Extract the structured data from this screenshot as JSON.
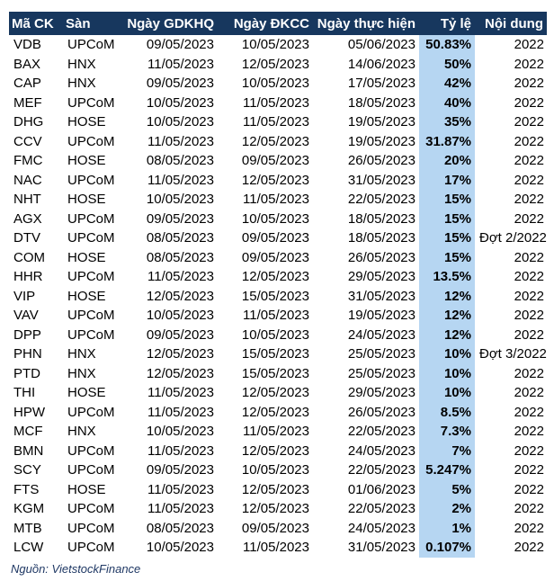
{
  "table": {
    "headers": [
      "Mã CK",
      "Sàn",
      "Ngày GDKHQ",
      "Ngày ĐKCC",
      "Ngày thực hiện",
      "Tỷ lệ",
      "Nội dung"
    ],
    "rows": [
      [
        "VDB",
        "UPCoM",
        "09/05/2023",
        "10/05/2023",
        "05/06/2023",
        "50.83%",
        "2022"
      ],
      [
        "BAX",
        "HNX",
        "11/05/2023",
        "12/05/2023",
        "14/06/2023",
        "50%",
        "2022"
      ],
      [
        "CAP",
        "HNX",
        "09/05/2023",
        "10/05/2023",
        "17/05/2023",
        "42%",
        "2022"
      ],
      [
        "MEF",
        "UPCoM",
        "10/05/2023",
        "11/05/2023",
        "18/05/2023",
        "40%",
        "2022"
      ],
      [
        "DHG",
        "HOSE",
        "10/05/2023",
        "11/05/2023",
        "19/05/2023",
        "35%",
        "2022"
      ],
      [
        "CCV",
        "UPCoM",
        "11/05/2023",
        "12/05/2023",
        "19/05/2023",
        "31.87%",
        "2022"
      ],
      [
        "FMC",
        "HOSE",
        "08/05/2023",
        "09/05/2023",
        "26/05/2023",
        "20%",
        "2022"
      ],
      [
        "NAC",
        "UPCoM",
        "11/05/2023",
        "12/05/2023",
        "31/05/2023",
        "17%",
        "2022"
      ],
      [
        "NHT",
        "HOSE",
        "10/05/2023",
        "11/05/2023",
        "22/05/2023",
        "15%",
        "2022"
      ],
      [
        "AGX",
        "UPCoM",
        "09/05/2023",
        "10/05/2023",
        "18/05/2023",
        "15%",
        "2022"
      ],
      [
        "DTV",
        "UPCoM",
        "08/05/2023",
        "09/05/2023",
        "18/05/2023",
        "15%",
        "Đợt 2/2022"
      ],
      [
        "COM",
        "HOSE",
        "08/05/2023",
        "09/05/2023",
        "26/05/2023",
        "15%",
        "2022"
      ],
      [
        "HHR",
        "UPCoM",
        "11/05/2023",
        "12/05/2023",
        "29/05/2023",
        "13.5%",
        "2022"
      ],
      [
        "VIP",
        "HOSE",
        "12/05/2023",
        "15/05/2023",
        "31/05/2023",
        "12%",
        "2022"
      ],
      [
        "VAV",
        "UPCoM",
        "10/05/2023",
        "11/05/2023",
        "19/05/2023",
        "12%",
        "2022"
      ],
      [
        "DPP",
        "UPCoM",
        "09/05/2023",
        "10/05/2023",
        "24/05/2023",
        "12%",
        "2022"
      ],
      [
        "PHN",
        "HNX",
        "12/05/2023",
        "15/05/2023",
        "25/05/2023",
        "10%",
        "Đợt 3/2022"
      ],
      [
        "PTD",
        "HNX",
        "12/05/2023",
        "15/05/2023",
        "25/05/2023",
        "10%",
        "2022"
      ],
      [
        "THI",
        "HOSE",
        "11/05/2023",
        "12/05/2023",
        "29/05/2023",
        "10%",
        "2022"
      ],
      [
        "HPW",
        "UPCoM",
        "11/05/2023",
        "12/05/2023",
        "26/05/2023",
        "8.5%",
        "2022"
      ],
      [
        "MCF",
        "HNX",
        "10/05/2023",
        "11/05/2023",
        "22/05/2023",
        "7.3%",
        "2022"
      ],
      [
        "BMN",
        "UPCoM",
        "11/05/2023",
        "12/05/2023",
        "24/05/2023",
        "7%",
        "2022"
      ],
      [
        "SCY",
        "UPCoM",
        "09/05/2023",
        "10/05/2023",
        "22/05/2023",
        "5.247%",
        "2022"
      ],
      [
        "FTS",
        "HOSE",
        "11/05/2023",
        "12/05/2023",
        "01/06/2023",
        "5%",
        "2022"
      ],
      [
        "KGM",
        "UPCoM",
        "11/05/2023",
        "12/05/2023",
        "22/05/2023",
        "2%",
        "2022"
      ],
      [
        "MTB",
        "UPCoM",
        "08/05/2023",
        "09/05/2023",
        "24/05/2023",
        "1%",
        "2022"
      ],
      [
        "LCW",
        "UPCoM",
        "10/05/2023",
        "11/05/2023",
        "31/05/2023",
        "0.107%",
        "2022"
      ]
    ]
  },
  "source": "Nguồn: VietstockFinance",
  "colors": {
    "header_bg": "#17375e",
    "rate_bg": "#b6d6f2",
    "source_text": "#1f3864"
  }
}
